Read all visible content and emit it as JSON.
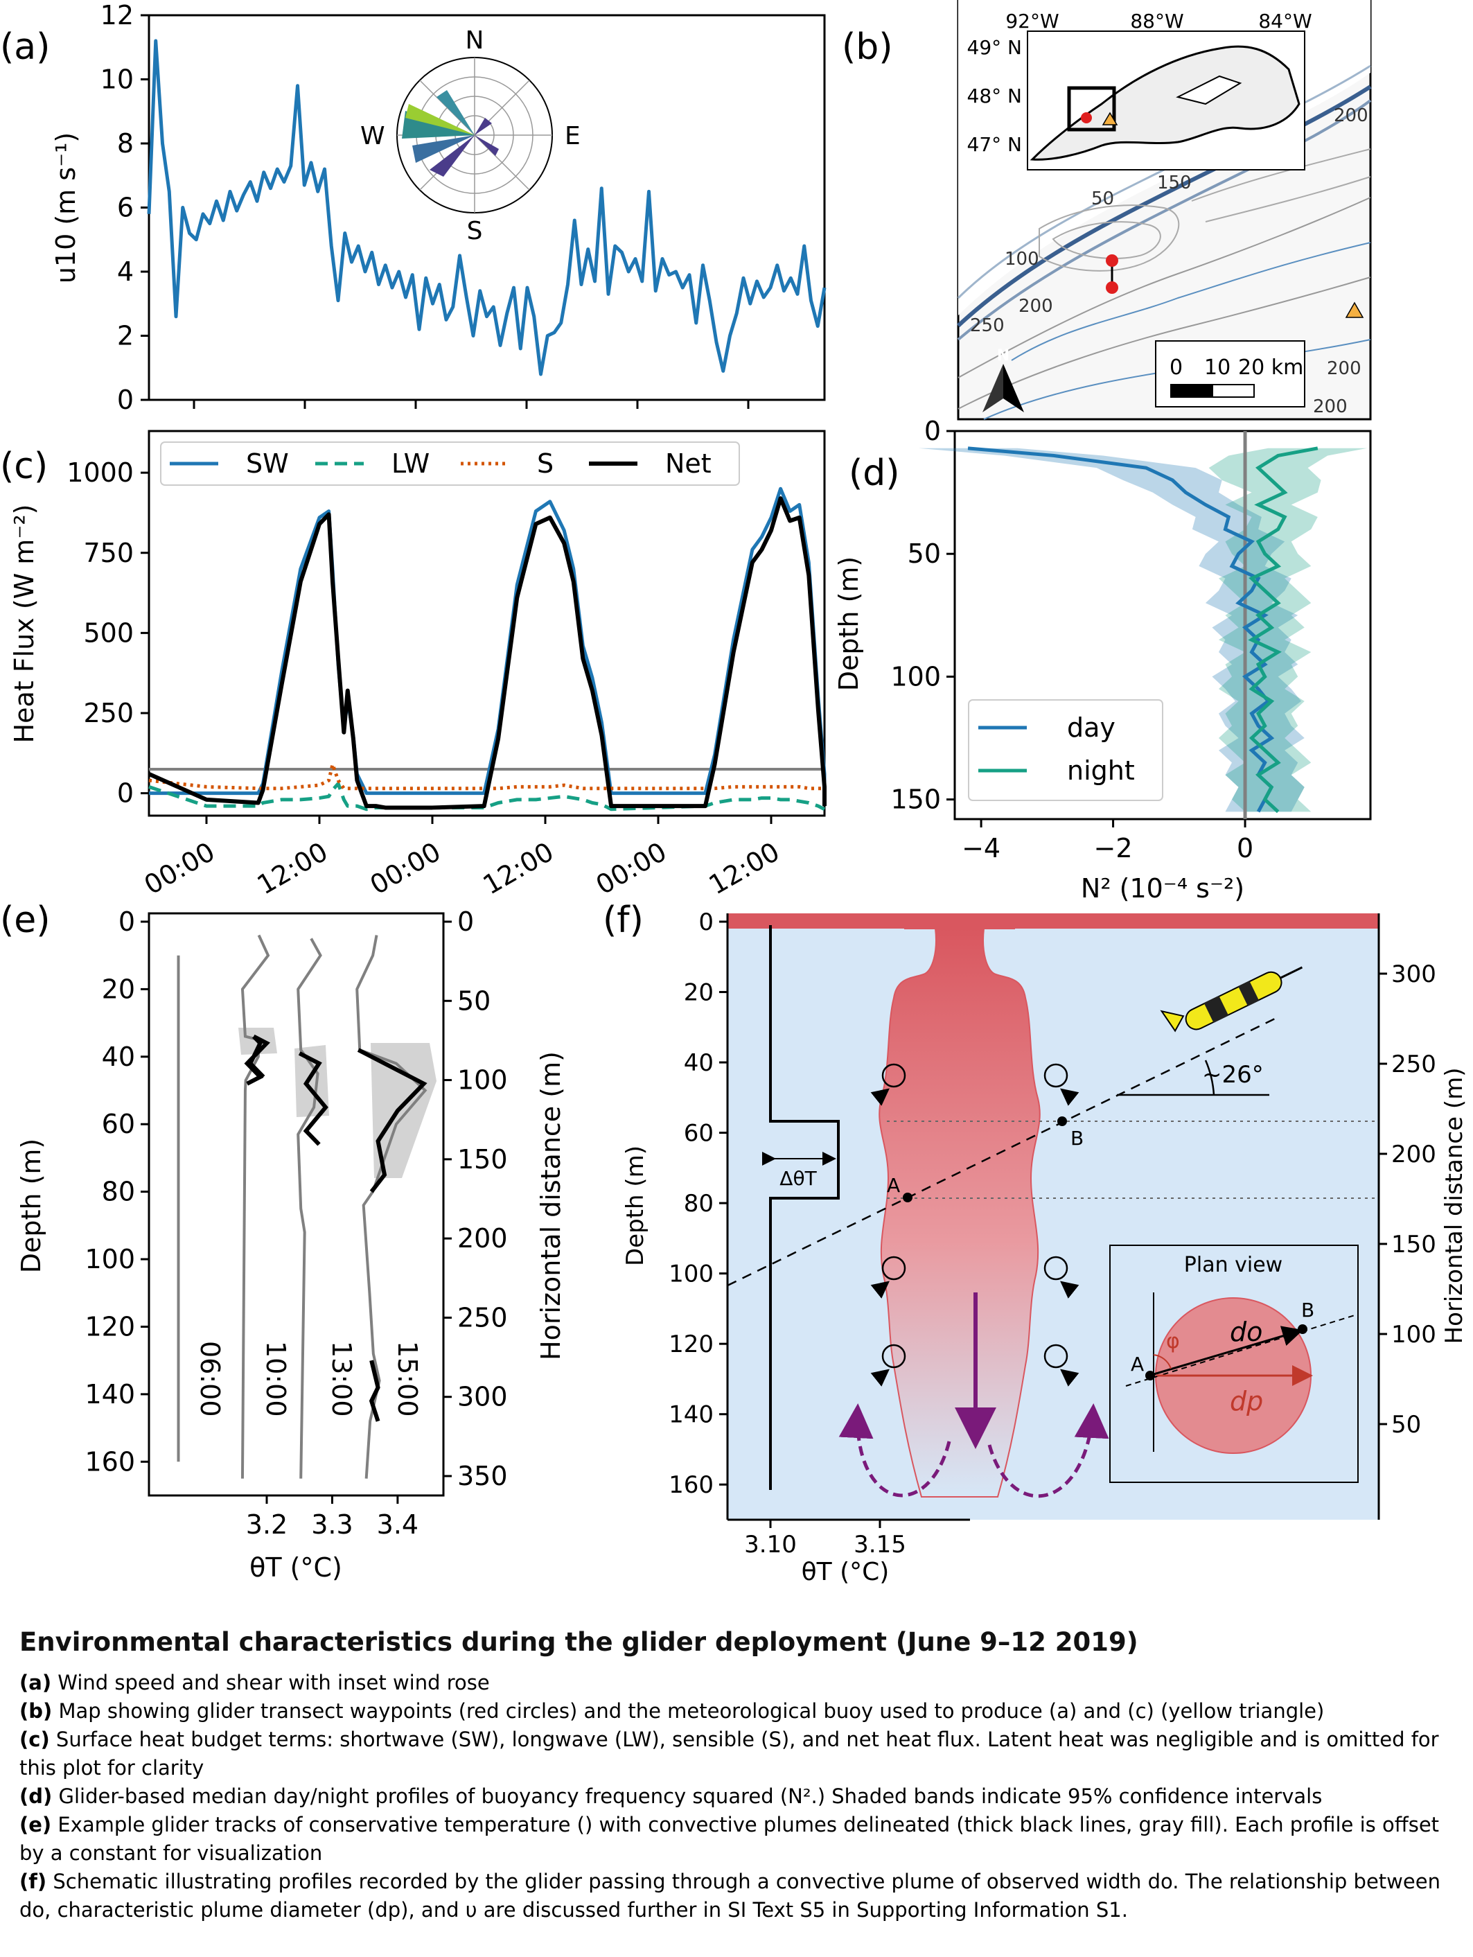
{
  "figure": {
    "panel_labels": [
      "(a)",
      "(b)",
      "(c)",
      "(d)",
      "(e)",
      "(f)"
    ]
  },
  "chart_data": [
    {
      "panel": "(a)",
      "type": "line",
      "ylabel": "u10 (m s⁻¹)",
      "ylim": [
        0,
        12
      ],
      "yticks": [
        "0",
        "2",
        "4",
        "6",
        "8",
        "10",
        "12"
      ],
      "x": [
        0,
        1,
        2,
        3,
        4,
        5,
        6,
        7,
        8,
        9,
        10,
        11,
        12,
        13,
        14,
        15,
        16,
        17,
        18,
        19,
        20,
        21,
        22,
        23,
        24,
        25,
        26,
        27,
        28,
        29,
        30,
        31,
        32,
        33,
        34,
        35,
        36,
        37,
        38,
        39,
        40,
        41,
        42,
        43,
        44,
        45,
        46,
        47,
        48,
        49,
        50,
        51,
        52,
        53,
        54,
        55,
        56,
        57,
        58,
        59,
        60,
        61,
        62,
        63,
        64,
        65,
        66,
        67,
        68,
        69,
        70,
        71,
        72,
        73,
        74,
        75,
        76,
        77,
        78,
        79,
        80,
        81,
        82,
        83,
        84,
        85,
        86,
        87,
        88,
        89,
        90,
        91,
        92,
        93,
        94,
        95,
        96,
        97,
        98,
        99,
        100
      ],
      "series": [
        {
          "color": "#1f77b4",
          "values": [
            5.8,
            11.2,
            8.0,
            6.5,
            2.6,
            6.0,
            5.2,
            5.0,
            5.8,
            5.5,
            6.2,
            5.6,
            6.5,
            5.9,
            6.4,
            6.8,
            6.2,
            7.1,
            6.6,
            7.2,
            6.8,
            7.3,
            9.8,
            6.7,
            7.4,
            6.5,
            7.2,
            4.8,
            3.1,
            5.2,
            4.3,
            4.8,
            4.0,
            4.6,
            3.6,
            4.2,
            3.5,
            4.0,
            3.2,
            3.9,
            2.2,
            3.8,
            3.0,
            3.6,
            2.5,
            2.9,
            4.5,
            3.2,
            2.0,
            3.4,
            2.6,
            2.9,
            1.7,
            2.7,
            3.5,
            1.6,
            3.5,
            2.6,
            0.8,
            2.0,
            2.1,
            2.4,
            3.6,
            5.6,
            3.6,
            4.7,
            3.7,
            6.6,
            3.3,
            4.8,
            4.6,
            4.0,
            4.4,
            3.7,
            6.5,
            3.4,
            4.4,
            3.9,
            4.0,
            3.5,
            3.9,
            2.4,
            4.2,
            3.1,
            1.8,
            0.9,
            2.0,
            2.7,
            3.8,
            3.0,
            3.7,
            3.2,
            3.5,
            4.2,
            3.4,
            3.8,
            3.3,
            4.8,
            3.1,
            2.3,
            3.5
          ]
        }
      ],
      "inset_wind_rose": {
        "labels": {
          "N": "N",
          "S": "S",
          "E": "E",
          "W": "W"
        }
      }
    },
    {
      "panel": "(b)",
      "type": "map",
      "inset_lon_labels": [
        "92°W",
        "88°W",
        "84°W"
      ],
      "inset_lat_labels": [
        "49° N",
        "48° N",
        "47° N"
      ],
      "contour_labels": [
        "200",
        "150",
        "50",
        "100",
        "200",
        "250",
        "200",
        "200"
      ],
      "scalebar_labels": [
        "0",
        "10",
        "20 km"
      ],
      "north_arrow": "N",
      "markers": {
        "waypoints": "red circles",
        "buoy": "yellow triangle"
      }
    },
    {
      "panel": "(c)",
      "type": "line",
      "ylabel": "Heat Flux (W m⁻²)",
      "ylim": [
        -70,
        1130
      ],
      "yticks": [
        "0",
        "250",
        "500",
        "750",
        "1000"
      ],
      "xticks": [
        "00:00",
        "12:00",
        "00:00",
        "12:00",
        "00:00",
        "12:00"
      ],
      "x_hours": [
        -9,
        0,
        5.5,
        6,
        8,
        10,
        12,
        13,
        13.4,
        14,
        14.6,
        15,
        15.6,
        16,
        17,
        18,
        19,
        24,
        29.5,
        31,
        33,
        35,
        36.5,
        38,
        39,
        40,
        41,
        42,
        43,
        48,
        53,
        54,
        56,
        58,
        59,
        60,
        61,
        62,
        63,
        64,
        65,
        65.8,
        66.3
      ],
      "series": [
        {
          "name": "SW",
          "color": "#1f77b4",
          "style": "solid",
          "values": [
            0,
            0,
            0,
            30,
            380,
            700,
            860,
            880,
            700,
            400,
            200,
            290,
            180,
            60,
            0,
            0,
            0,
            0,
            0,
            200,
            650,
            880,
            910,
            820,
            700,
            460,
            360,
            220,
            0,
            0,
            0,
            120,
            480,
            760,
            800,
            860,
            950,
            880,
            900,
            720,
            300,
            60,
            0
          ]
        },
        {
          "name": "LW",
          "color": "#16a085",
          "style": "dashed",
          "values": [
            20,
            -40,
            -40,
            -30,
            -20,
            -20,
            -15,
            -10,
            10,
            30,
            -20,
            -40,
            -40,
            -40,
            -50,
            -45,
            -45,
            -45,
            -45,
            -30,
            -20,
            -20,
            -15,
            -10,
            -15,
            -20,
            -30,
            -35,
            -50,
            -45,
            -40,
            -30,
            -20,
            -20,
            -15,
            -15,
            -20,
            -20,
            -25,
            -30,
            -40,
            -50,
            -50
          ]
        },
        {
          "name": "S",
          "color": "#d35400",
          "style": "dotted",
          "values": [
            40,
            20,
            15,
            15,
            15,
            20,
            25,
            40,
            90,
            40,
            15,
            15,
            15,
            15,
            15,
            15,
            15,
            15,
            15,
            15,
            20,
            20,
            20,
            25,
            20,
            15,
            15,
            15,
            15,
            15,
            15,
            15,
            20,
            20,
            20,
            20,
            20,
            20,
            20,
            15,
            15,
            15,
            15
          ]
        },
        {
          "name": "Net",
          "color": "#000000",
          "style": "solid",
          "values": [
            60,
            -20,
            -30,
            10,
            340,
            660,
            840,
            870,
            660,
            420,
            190,
            320,
            170,
            40,
            -40,
            -40,
            -45,
            -45,
            -40,
            170,
            610,
            840,
            860,
            780,
            660,
            420,
            320,
            180,
            -40,
            -40,
            -40,
            90,
            440,
            720,
            760,
            820,
            920,
            850,
            860,
            680,
            260,
            20,
            -40
          ]
        }
      ]
    },
    {
      "panel": "(d)",
      "type": "line",
      "xlabel": "N² (10⁻⁴ s⁻²)",
      "ylabel": "Depth (m)",
      "xlim": [
        -4.4,
        1.9
      ],
      "ylim": [
        158,
        0
      ],
      "xticks": [
        "−4",
        "−2",
        "0"
      ],
      "yticks": [
        "0",
        "50",
        "100",
        "150"
      ],
      "depth": [
        7,
        10,
        15,
        20,
        25,
        30,
        35,
        40,
        45,
        50,
        55,
        60,
        65,
        70,
        75,
        80,
        85,
        90,
        95,
        100,
        105,
        110,
        115,
        120,
        125,
        130,
        135,
        140,
        145,
        150,
        155
      ],
      "series": [
        {
          "name": "day",
          "color": "#1f77b4",
          "values": [
            -4.2,
            -2.9,
            -1.5,
            -1.1,
            -0.9,
            -0.6,
            -0.25,
            -0.3,
            0.1,
            -0.1,
            -0.2,
            0.2,
            0.1,
            -0.1,
            0.3,
            0.0,
            0.2,
            0.1,
            0.3,
            0.0,
            0.2,
            0.35,
            0.1,
            0.2,
            0.4,
            0.1,
            0.3,
            0.2,
            0.4,
            0.3,
            0.2
          ]
        },
        {
          "name": "night",
          "color": "#16a085",
          "values": [
            1.1,
            0.5,
            0.2,
            0.4,
            0.6,
            0.2,
            0.6,
            0.5,
            0.2,
            0.3,
            0.5,
            0.1,
            0.3,
            0.5,
            0.2,
            0.4,
            0.1,
            0.5,
            0.2,
            0.3,
            0.1,
            0.4,
            0.2,
            0.3,
            0.1,
            0.3,
            0.5,
            0.2,
            0.4,
            0.3,
            0.5
          ]
        }
      ]
    },
    {
      "panel": "(e)",
      "type": "line",
      "xlabel": "θT (°C)",
      "ylabel": "Depth (m)",
      "ylabel_right": "Horizontal distance (m)",
      "xlim": [
        3.02,
        3.47
      ],
      "ylim": [
        170,
        0
      ],
      "xticks": [
        "3.2",
        "3.3",
        "3.4"
      ],
      "yticks": [
        "0",
        "20",
        "40",
        "60",
        "80",
        "100",
        "120",
        "140",
        "160"
      ],
      "yticks_right": [
        "0",
        "50",
        "100",
        "150",
        "200",
        "250",
        "300",
        "350"
      ],
      "profile_labels": [
        "06:00",
        "10:00",
        "13:00",
        "15:00"
      ],
      "series": [
        {
          "name": "06:00",
          "depth": [
            10,
            160
          ],
          "theta": [
            3.065,
            3.065
          ]
        },
        {
          "name": "10:00",
          "depth": [
            4,
            10,
            20,
            34,
            35,
            40,
            47,
            50,
            165
          ],
          "theta": [
            3.19,
            3.2,
            3.165,
            3.165,
            3.19,
            3.185,
            3.17,
            3.165,
            3.165
          ]
        },
        {
          "name": "13:00",
          "depth": [
            5,
            10,
            20,
            38,
            45,
            55,
            63,
            85,
            92,
            165
          ],
          "theta": [
            3.27,
            3.28,
            3.25,
            3.25,
            3.28,
            3.27,
            3.25,
            3.25,
            3.26,
            3.25
          ]
        },
        {
          "name": "15:00",
          "depth": [
            4,
            10,
            20,
            38,
            42,
            50,
            60,
            80,
            84,
            110,
            128,
            136,
            148,
            165
          ],
          "theta": [
            3.37,
            3.36,
            3.34,
            3.34,
            3.4,
            3.44,
            3.4,
            3.36,
            3.35,
            3.355,
            3.365,
            3.37,
            3.36,
            3.35
          ]
        }
      ]
    },
    {
      "panel": "(f)",
      "type": "schematic",
      "ylabel": "Depth (m)",
      "ylabel_right": "Horizontal distance (m)",
      "xlabel": "θT (°C)",
      "xticks": [
        "3.10",
        "3.15"
      ],
      "yticks": [
        "0",
        "20",
        "40",
        "60",
        "80",
        "100",
        "120",
        "140",
        "160"
      ],
      "yticks_right": [
        "300",
        "250",
        "200",
        "150",
        "100",
        "50"
      ],
      "annotations": {
        "angle": "~26°",
        "delta_theta": "ΔθT",
        "point_a": "A",
        "point_b": "B",
        "plan_view_title": "Plan view",
        "do": "do",
        "dp": "dp",
        "phi": "φ"
      }
    }
  ],
  "caption": {
    "title": "Environmental characteristics during the glider deployment (June 9–12 2019)",
    "items": [
      {
        "tag": "(a)",
        "text": " Wind speed and shear with inset wind rose"
      },
      {
        "tag": "(b)",
        "text": " Map showing glider transect waypoints (red circles) and the meteorological buoy used to produce (a) and (c) (yellow triangle)"
      },
      {
        "tag": "(c)",
        "text": " Surface heat budget terms: shortwave (SW), longwave (LW), sensible (S), and net heat flux. Latent heat was negligible and is omitted for this plot for clarity"
      },
      {
        "tag": "(d)",
        "text": " Glider-based median day/night profiles of buoyancy frequency squared (N².) Shaded bands indicate 95% confidence intervals"
      },
      {
        "tag": "(e)",
        "text": " Example glider tracks of conservative temperature () with convective plumes delineated (thick black lines, gray fill). Each profile is offset by a constant for visualization"
      },
      {
        "tag": "(f)",
        "text": " Schematic illustrating profiles recorded by the glider passing through a convective plume of observed width do. The relationship between do, characteristic plume diameter (dp), and υ are discussed further in SI Text S5 in Supporting Information S1."
      }
    ]
  }
}
